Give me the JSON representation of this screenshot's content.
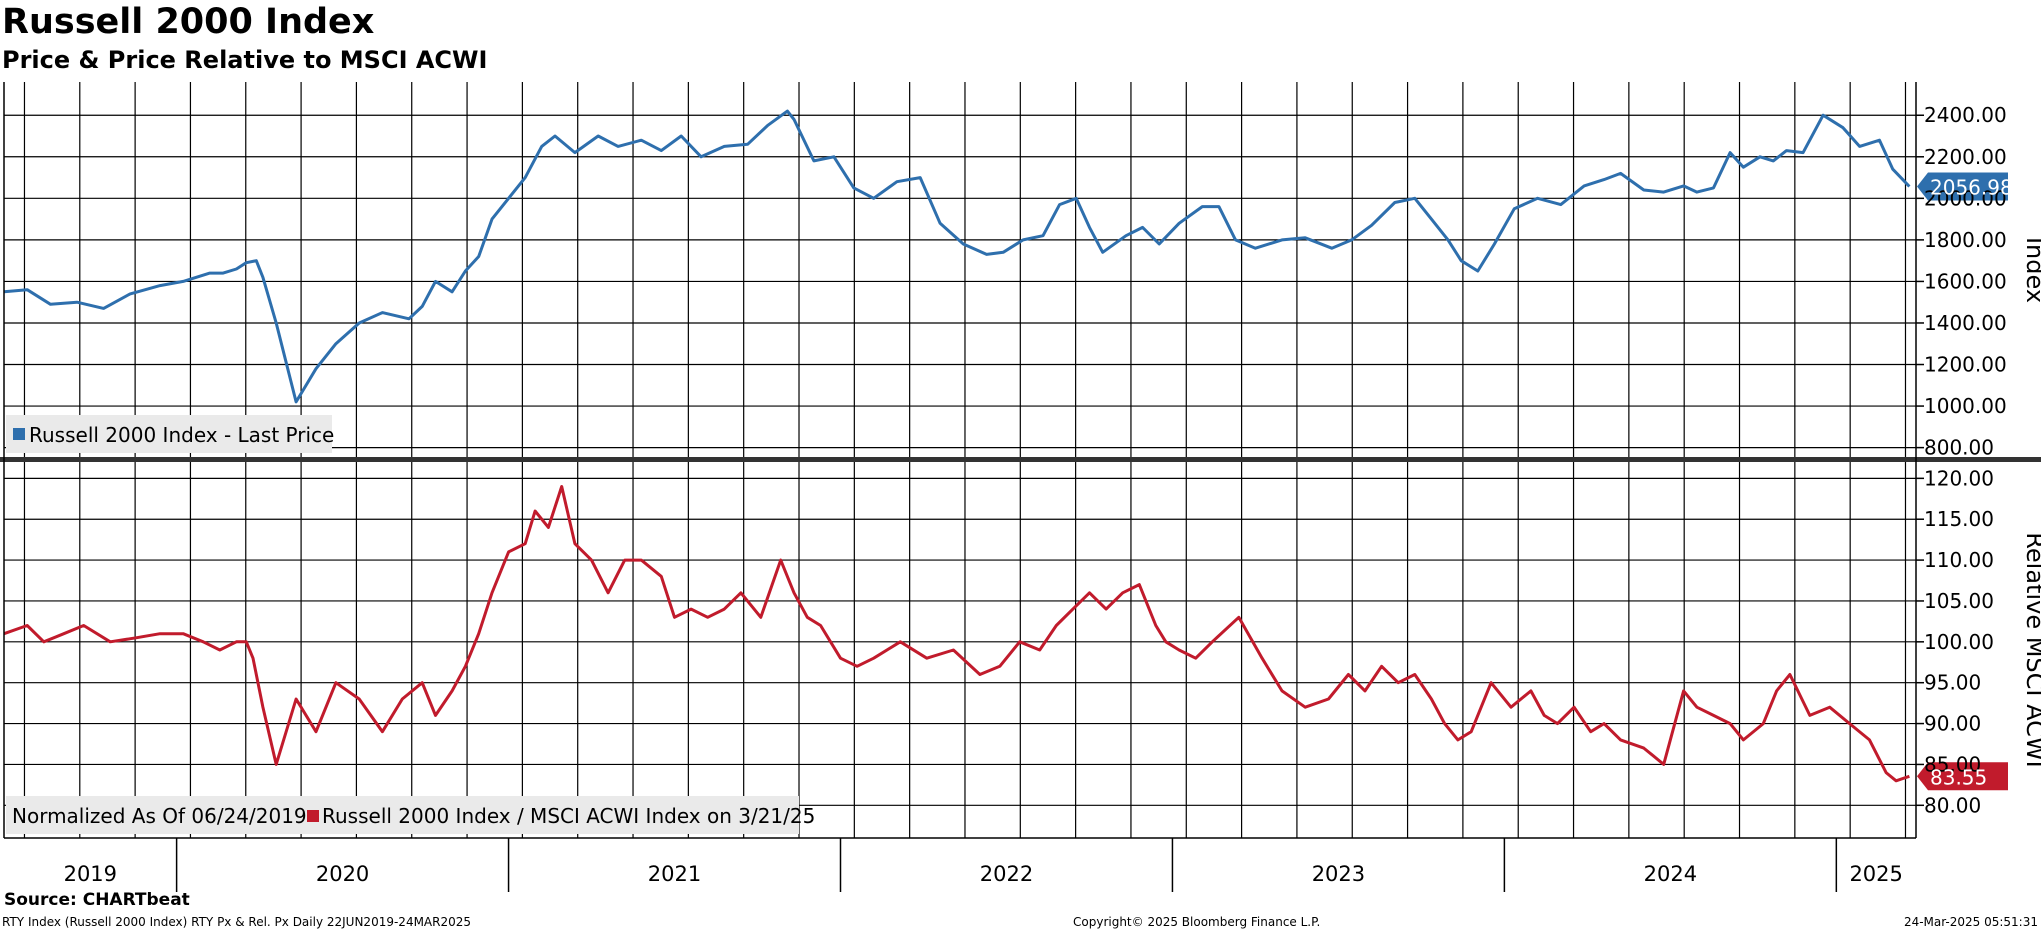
{
  "title": "Russell 2000 Index",
  "subtitle": "Price & Price Relative to MSCI ACWI",
  "source": "Source: CHARTbeat",
  "footer": {
    "left": "RTY Index (Russell 2000 Index) RTY Px & Rel. Px  Daily 22JUN2019-24MAR2025",
    "center": "Copyright© 2025 Bloomberg Finance L.P.",
    "right": "24-Mar-2025 05:51:31"
  },
  "colors": {
    "price": "#2e6fad",
    "relative": "#c11b2c",
    "grid": "#000000",
    "legend_bg": "#eaeaea"
  },
  "chart_data": [
    {
      "type": "line",
      "ylabel": "Index",
      "ylim": [
        750,
        2560
      ],
      "yticks": [
        800,
        1000,
        1200,
        1400,
        1600,
        1800,
        2000,
        2200,
        2400
      ],
      "tick_decimals": 2,
      "legend": "Russell 2000 Index - Last Price",
      "legend_placement": "bottom-left",
      "last_value_label": "2056.98",
      "grid": true,
      "series": [
        {
          "name": "Russell 2000 Index - Last Price",
          "x": [
            2019.48,
            2019.55,
            2019.62,
            2019.7,
            2019.78,
            2019.86,
            2019.95,
            2020.02,
            2020.1,
            2020.14,
            2020.18,
            2020.21,
            2020.24,
            2020.26,
            2020.3,
            2020.36,
            2020.42,
            2020.48,
            2020.55,
            2020.62,
            2020.7,
            2020.74,
            2020.78,
            2020.83,
            2020.87,
            2020.91,
            2020.95,
            2021.0,
            2021.05,
            2021.1,
            2021.14,
            2021.2,
            2021.27,
            2021.33,
            2021.4,
            2021.46,
            2021.52,
            2021.58,
            2021.65,
            2021.72,
            2021.78,
            2021.84,
            2021.86,
            2021.92,
            2021.98,
            2022.04,
            2022.1,
            2022.17,
            2022.24,
            2022.3,
            2022.37,
            2022.44,
            2022.49,
            2022.55,
            2022.61,
            2022.66,
            2022.71,
            2022.75,
            2022.79,
            2022.86,
            2022.91,
            2022.96,
            2023.02,
            2023.09,
            2023.14,
            2023.19,
            2023.25,
            2023.33,
            2023.4,
            2023.48,
            2023.54,
            2023.6,
            2023.67,
            2023.73,
            2023.78,
            2023.83,
            2023.87,
            2023.92,
            2023.97,
            2024.03,
            2024.1,
            2024.17,
            2024.24,
            2024.3,
            2024.35,
            2024.42,
            2024.48,
            2024.54,
            2024.58,
            2024.63,
            2024.68,
            2024.72,
            2024.77,
            2024.81,
            2024.85,
            2024.9,
            2024.96,
            2025.02,
            2025.07,
            2025.13,
            2025.17,
            2025.22
          ],
          "y": [
            1550,
            1560,
            1490,
            1500,
            1470,
            1540,
            1580,
            1600,
            1640,
            1640,
            1660,
            1690,
            1700,
            1620,
            1400,
            1020,
            1180,
            1300,
            1400,
            1450,
            1420,
            1480,
            1600,
            1550,
            1650,
            1720,
            1900,
            2000,
            2100,
            2250,
            2300,
            2220,
            2300,
            2250,
            2280,
            2230,
            2300,
            2200,
            2250,
            2260,
            2350,
            2420,
            2380,
            2180,
            2200,
            2050,
            2000,
            2080,
            2100,
            1880,
            1780,
            1730,
            1740,
            1800,
            1820,
            1970,
            2000,
            1860,
            1740,
            1820,
            1860,
            1780,
            1880,
            1960,
            1960,
            1800,
            1760,
            1800,
            1810,
            1760,
            1800,
            1870,
            1980,
            2000,
            1900,
            1800,
            1700,
            1650,
            1780,
            1950,
            2000,
            1970,
            2060,
            2090,
            2120,
            2040,
            2030,
            2060,
            2030,
            2050,
            2220,
            2150,
            2200,
            2180,
            2230,
            2220,
            2400,
            2340,
            2250,
            2280,
            2140,
            2057
          ]
        }
      ]
    },
    {
      "type": "line",
      "ylabel": "Relative MSCI ACWI",
      "ylim": [
        76,
        122
      ],
      "yticks": [
        80,
        85,
        90,
        95,
        100,
        105,
        110,
        115,
        120
      ],
      "tick_decimals": 2,
      "legend": "Normalized As Of 06/24/2019   Russell 2000 Index / MSCI ACWI Index on 3/21/25",
      "legend_placement": "bottom-left",
      "last_value_label": "83.55",
      "grid": true,
      "series": [
        {
          "name": "Russell 2000 Index / MSCI ACWI Index on 3/21/25",
          "x": [
            2019.48,
            2019.55,
            2019.6,
            2019.66,
            2019.72,
            2019.8,
            2019.88,
            2019.95,
            2020.02,
            2020.08,
            2020.13,
            2020.18,
            2020.21,
            2020.23,
            2020.26,
            2020.3,
            2020.36,
            2020.42,
            2020.48,
            2020.55,
            2020.62,
            2020.68,
            2020.74,
            2020.78,
            2020.83,
            2020.87,
            2020.91,
            2020.95,
            2021.0,
            2021.05,
            2021.08,
            2021.12,
            2021.16,
            2021.2,
            2021.25,
            2021.3,
            2021.35,
            2021.4,
            2021.46,
            2021.5,
            2021.55,
            2021.6,
            2021.65,
            2021.7,
            2021.76,
            2021.82,
            2021.86,
            2021.9,
            2021.94,
            2022.0,
            2022.05,
            2022.1,
            2022.18,
            2022.26,
            2022.34,
            2022.42,
            2022.48,
            2022.54,
            2022.6,
            2022.65,
            2022.7,
            2022.75,
            2022.8,
            2022.85,
            2022.9,
            2022.95,
            2022.98,
            2023.02,
            2023.07,
            2023.12,
            2023.2,
            2023.27,
            2023.33,
            2023.4,
            2023.47,
            2023.53,
            2023.58,
            2023.63,
            2023.68,
            2023.73,
            2023.78,
            2023.82,
            2023.86,
            2023.9,
            2023.96,
            2024.02,
            2024.08,
            2024.12,
            2024.16,
            2024.21,
            2024.26,
            2024.3,
            2024.35,
            2024.42,
            2024.48,
            2024.54,
            2024.58,
            2024.63,
            2024.68,
            2024.72,
            2024.78,
            2024.82,
            2024.86,
            2024.92,
            2024.98,
            2025.04,
            2025.1,
            2025.15,
            2025.18,
            2025.22
          ],
          "y": [
            101,
            102,
            100,
            101,
            102,
            100,
            100.5,
            101,
            101,
            100,
            99,
            100,
            100,
            98,
            92,
            85,
            93,
            89,
            95,
            93,
            89,
            93,
            95,
            91,
            94,
            97,
            101,
            106,
            111,
            112,
            116,
            114,
            119,
            112,
            110,
            106,
            110,
            110,
            108,
            103,
            104,
            103,
            104,
            106,
            103,
            110,
            106,
            103,
            102,
            98,
            97,
            98,
            100,
            98,
            99,
            96,
            97,
            100,
            99,
            102,
            104,
            106,
            104,
            106,
            107,
            102,
            100,
            99,
            98,
            100,
            103,
            98,
            94,
            92,
            93,
            96,
            94,
            97,
            95,
            96,
            93,
            90,
            88,
            89,
            95,
            92,
            94,
            91,
            90,
            92,
            89,
            90,
            88,
            87,
            85,
            94,
            92,
            91,
            90,
            88,
            90,
            94,
            96,
            91,
            92,
            90,
            88,
            84,
            83,
            83.55
          ]
        }
      ]
    }
  ],
  "x_axis": {
    "year_labels": [
      {
        "label": "2019",
        "x": 2019.25
      },
      {
        "label": "2020",
        "x": 2020.0
      },
      {
        "label": "2021",
        "x": 2021.0
      },
      {
        "label": "2022",
        "x": 2022.0
      },
      {
        "label": "2023",
        "x": 2023.0
      },
      {
        "label": "2024",
        "x": 2024.0
      },
      {
        "label": "2025",
        "x": 2025.0
      }
    ],
    "year_boundaries": [
      2020.0,
      2021.0,
      2022.0,
      2023.0,
      2024.0,
      2025.0
    ]
  }
}
